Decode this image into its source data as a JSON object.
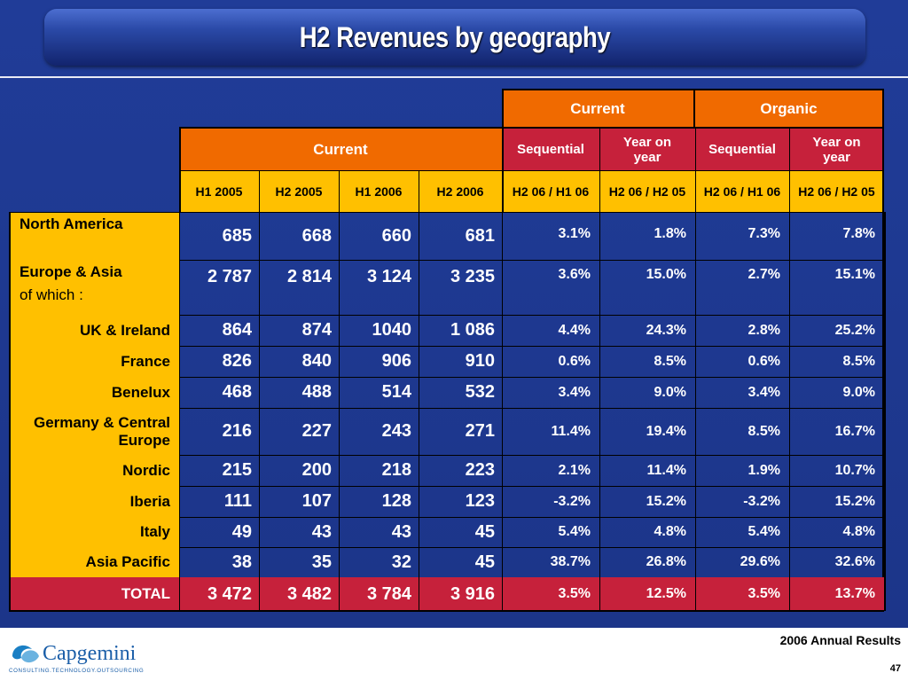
{
  "title": "H2 Revenues by geography",
  "header": {
    "current_group": "Current",
    "organic_group": "Organic",
    "current_main": "Current",
    "sequential": "Sequential",
    "year_on_year": "Year on year",
    "sequential2": "Sequential",
    "year_on_year2": "Year on year",
    "cols": [
      "H1 2005",
      "H2 2005",
      "H1 2006",
      "H2 2006",
      "H2 06 / H1 06",
      "H2 06 / H2 05",
      "H2 06 / H1 06",
      "H2 06 / H2 05"
    ]
  },
  "rows": [
    {
      "label": "North America",
      "sub": "",
      "values": [
        "685",
        "668",
        "660",
        "681",
        "3.1%",
        "1.8%",
        "7.3%",
        "7.8%"
      ]
    },
    {
      "label": "Europe & Asia",
      "sub": "of which :",
      "values": [
        "2 787",
        "2 814",
        "3 124",
        "3 235",
        "3.6%",
        "15.0%",
        "2.7%",
        "15.1%"
      ]
    },
    {
      "label": "UK & Ireland",
      "sub": "",
      "values": [
        "864",
        "874",
        "1040",
        "1 086",
        "4.4%",
        "24.3%",
        "2.8%",
        "25.2%"
      ]
    },
    {
      "label": "France",
      "sub": "",
      "values": [
        "826",
        "840",
        "906",
        "910",
        "0.6%",
        "8.5%",
        "0.6%",
        "8.5%"
      ]
    },
    {
      "label": "Benelux",
      "sub": "",
      "values": [
        "468",
        "488",
        "514",
        "532",
        "3.4%",
        "9.0%",
        "3.4%",
        "9.0%"
      ]
    },
    {
      "label": "Germany & Central Europe",
      "sub": "",
      "values": [
        "216",
        "227",
        "243",
        "271",
        "11.4%",
        "19.4%",
        "8.5%",
        "16.7%"
      ]
    },
    {
      "label": "Nordic",
      "sub": "",
      "values": [
        "215",
        "200",
        "218",
        "223",
        "2.1%",
        "11.4%",
        "1.9%",
        "10.7%"
      ]
    },
    {
      "label": "Iberia",
      "sub": "",
      "values": [
        "111",
        "107",
        "128",
        "123",
        "-3.2%",
        "15.2%",
        "-3.2%",
        "15.2%"
      ]
    },
    {
      "label": "Italy",
      "sub": "",
      "values": [
        "49",
        "43",
        "43",
        "45",
        "5.4%",
        "4.8%",
        "5.4%",
        "4.8%"
      ]
    },
    {
      "label": "Asia Pacific",
      "sub": "",
      "values": [
        "38",
        "35",
        "32",
        "45",
        "38.7%",
        "26.8%",
        "29.6%",
        "32.6%"
      ]
    }
  ],
  "total": {
    "label": "TOTAL",
    "values": [
      "3 472",
      "3 482",
      "3 784",
      "3 916",
      "3.5%",
      "12.5%",
      "3.5%",
      "13.7%"
    ]
  },
  "footer": {
    "logo_text": "Capgemini",
    "logo_tagline": "CONSULTING.TECHNOLOGY.OUTSOURCING",
    "report": "2006 Annual Results",
    "page": "47"
  },
  "colors": {
    "background": "#1f3a93",
    "orange": "#f06a00",
    "red": "#c6213b",
    "yellow": "#ffc000"
  }
}
